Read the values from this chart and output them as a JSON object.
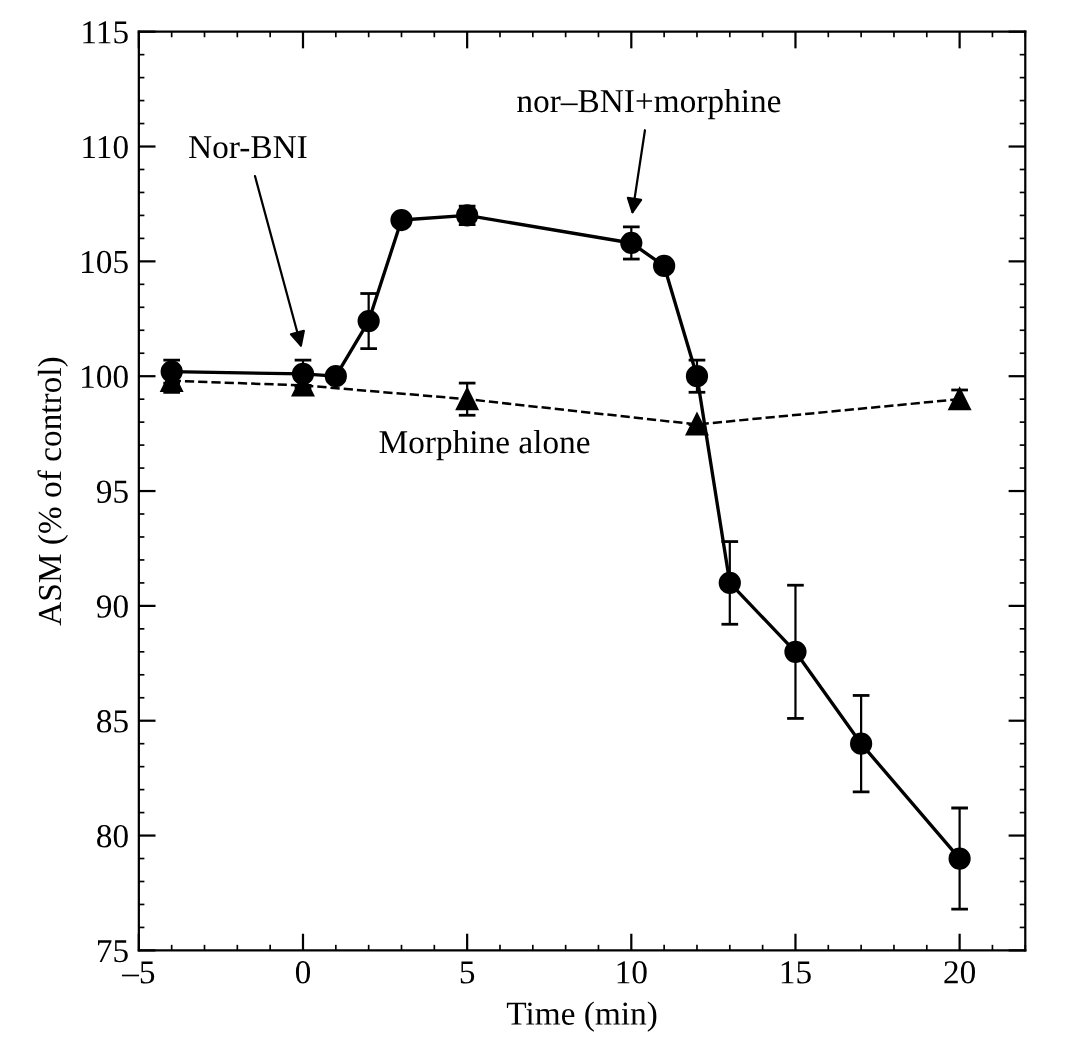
{
  "chart_data": {
    "type": "line",
    "xlabel": "Time (min)",
    "ylabel": "ASM (% of control)",
    "xlim": [
      -5,
      22
    ],
    "ylim": [
      75,
      115
    ],
    "xticks": [
      {
        "value": -5,
        "label": "–5"
      },
      0,
      5,
      10,
      15,
      20
    ],
    "yticks": [
      75,
      80,
      85,
      90,
      95,
      100,
      105,
      110,
      115
    ],
    "grid": false,
    "legend": false,
    "series": [
      {
        "x": [
          -4,
          0,
          1,
          2,
          3,
          5,
          10,
          11,
          12,
          13,
          15,
          17,
          20
        ],
        "values": [
          100.2,
          100.1,
          100,
          102.4,
          106.8,
          107,
          105.8,
          104.8,
          100,
          91,
          88,
          84,
          79
        ],
        "errors": [
          0.5,
          0.6,
          null,
          1.2,
          null,
          0.4,
          0.7,
          null,
          0.7,
          1.8,
          2.9,
          2.1,
          2.2
        ],
        "color": "#000000",
        "marker": "circle",
        "line_style": "solid"
      },
      {
        "x": [
          -4,
          0,
          5,
          12,
          20
        ],
        "values": [
          99.8,
          99.6,
          99,
          97.9,
          99
        ],
        "errors": [
          0.5,
          null,
          0.7,
          null,
          0.4
        ],
        "color": "#000000",
        "marker": "triangle",
        "line_style": "dashed"
      }
    ],
    "annotations": [
      {
        "text": "Nor-BNI",
        "x": 0,
        "y": 101
      },
      {
        "text": "nor–BNI+morphine",
        "x": 10,
        "y": 106.8
      },
      "Morphine alone"
    ]
  }
}
